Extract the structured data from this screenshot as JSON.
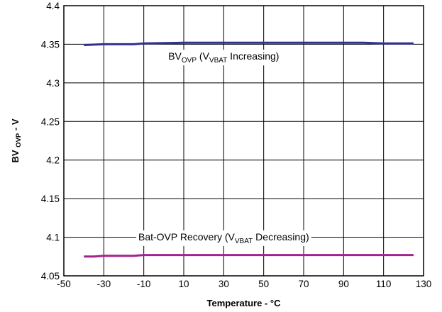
{
  "chart_data": {
    "type": "line",
    "title": "",
    "xlabel": "Temperature - °C",
    "ylabel": {
      "main": "BV",
      "sub": "OVP",
      "suffix": " - V"
    },
    "xlim": [
      -50,
      130
    ],
    "ylim": [
      4.05,
      4.4
    ],
    "x_ticks": [
      -50,
      -30,
      -10,
      10,
      30,
      50,
      70,
      90,
      110,
      130
    ],
    "x_tick_labels": [
      "-50",
      "-30",
      "-10",
      "10",
      "30",
      "50",
      "70",
      "90",
      "110",
      "130"
    ],
    "y_ticks": [
      4.05,
      4.1,
      4.15,
      4.2,
      4.25,
      4.3,
      4.35,
      4.4
    ],
    "y_tick_labels": [
      "4.05",
      "4.1",
      "4.15",
      "4.2",
      "4.25",
      "4.3",
      "4.35",
      "4.4"
    ],
    "grid": true,
    "series": [
      {
        "color": "#2e3192",
        "points": [
          {
            "x": -40,
            "y": 4.349
          },
          {
            "x": -30,
            "y": 4.35
          },
          {
            "x": -15,
            "y": 4.35
          },
          {
            "x": -10,
            "y": 4.351
          },
          {
            "x": 10,
            "y": 4.352
          },
          {
            "x": 40,
            "y": 4.352
          },
          {
            "x": 70,
            "y": 4.352
          },
          {
            "x": 100,
            "y": 4.352
          },
          {
            "x": 110,
            "y": 4.351
          },
          {
            "x": 125,
            "y": 4.351
          }
        ]
      },
      {
        "color": "#a3238e",
        "points": [
          {
            "x": -40,
            "y": 4.075
          },
          {
            "x": -35,
            "y": 4.075
          },
          {
            "x": -30,
            "y": 4.076
          },
          {
            "x": -15,
            "y": 4.076
          },
          {
            "x": -10,
            "y": 4.077
          },
          {
            "x": 10,
            "y": 4.077
          },
          {
            "x": 50,
            "y": 4.077
          },
          {
            "x": 90,
            "y": 4.077
          },
          {
            "x": 125,
            "y": 4.077
          }
        ]
      }
    ],
    "annotations": [
      {
        "parts": [
          {
            "t": "BV",
            "sub": false
          },
          {
            "t": "OVP",
            "sub": true
          },
          {
            "t": " (V",
            "sub": false
          },
          {
            "t": "VBAT",
            "sub": true
          },
          {
            "t": " Increasing)",
            "sub": false
          }
        ],
        "x": 30,
        "y": 4.33
      },
      {
        "parts": [
          {
            "t": "Bat-OVP Recovery (V",
            "sub": false
          },
          {
            "t": "VBAT",
            "sub": true
          },
          {
            "t": " Decreasing)",
            "sub": false
          }
        ],
        "x": 30,
        "y": 4.096
      }
    ]
  }
}
